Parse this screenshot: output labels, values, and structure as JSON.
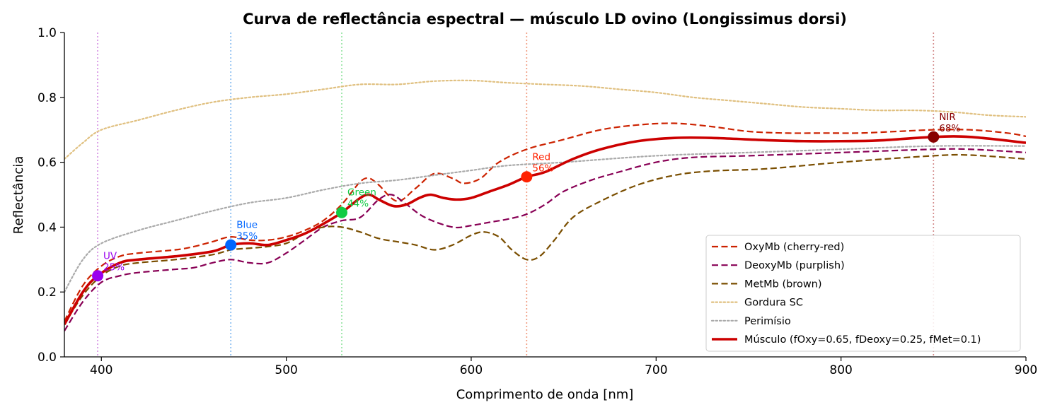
{
  "chart_data": {
    "type": "line",
    "title": "Curva de reflectância espectral — músculo LD ovino (Longissimus dorsi)",
    "xlabel": "Comprimento de onda [nm]",
    "ylabel": "Reflectância",
    "xlim": [
      380,
      900
    ],
    "ylim": [
      0.0,
      1.0
    ],
    "xticks": [
      400,
      500,
      600,
      700,
      800,
      900
    ],
    "xtick_labels": [
      "400",
      "500",
      "600",
      "700",
      "800",
      "900"
    ],
    "yticks": [
      0.0,
      0.2,
      0.4,
      0.6,
      0.8,
      1.0
    ],
    "ytick_labels": [
      "0.0",
      "0.2",
      "0.4",
      "0.6",
      "0.8",
      "1.0"
    ],
    "grid": false,
    "legend_position": "lower-right",
    "series": [
      {
        "name": "OxyMb (cherry-red)",
        "color": "#cc2200",
        "style": "dashed",
        "points": [
          [
            380,
            0.11
          ],
          [
            390,
            0.22
          ],
          [
            400,
            0.28
          ],
          [
            410,
            0.31
          ],
          [
            420,
            0.32
          ],
          [
            440,
            0.33
          ],
          [
            450,
            0.34
          ],
          [
            460,
            0.355
          ],
          [
            470,
            0.37
          ],
          [
            480,
            0.36
          ],
          [
            490,
            0.36
          ],
          [
            500,
            0.37
          ],
          [
            510,
            0.39
          ],
          [
            520,
            0.42
          ],
          [
            530,
            0.47
          ],
          [
            540,
            0.54
          ],
          [
            545,
            0.55
          ],
          [
            550,
            0.53
          ],
          [
            560,
            0.48
          ],
          [
            570,
            0.52
          ],
          [
            580,
            0.565
          ],
          [
            590,
            0.55
          ],
          [
            596,
            0.535
          ],
          [
            605,
            0.55
          ],
          [
            615,
            0.6
          ],
          [
            630,
            0.64
          ],
          [
            650,
            0.67
          ],
          [
            670,
            0.7
          ],
          [
            690,
            0.715
          ],
          [
            710,
            0.72
          ],
          [
            730,
            0.71
          ],
          [
            750,
            0.695
          ],
          [
            770,
            0.69
          ],
          [
            790,
            0.69
          ],
          [
            810,
            0.69
          ],
          [
            830,
            0.695
          ],
          [
            850,
            0.7
          ],
          [
            870,
            0.7
          ],
          [
            890,
            0.69
          ],
          [
            900,
            0.68
          ]
        ]
      },
      {
        "name": "DeoxyMb (purplish)",
        "color": "#880055",
        "style": "dashed",
        "points": [
          [
            380,
            0.08
          ],
          [
            390,
            0.17
          ],
          [
            400,
            0.23
          ],
          [
            410,
            0.25
          ],
          [
            420,
            0.26
          ],
          [
            440,
            0.27
          ],
          [
            450,
            0.275
          ],
          [
            460,
            0.29
          ],
          [
            470,
            0.3
          ],
          [
            480,
            0.29
          ],
          [
            490,
            0.29
          ],
          [
            500,
            0.32
          ],
          [
            510,
            0.36
          ],
          [
            520,
            0.4
          ],
          [
            530,
            0.42
          ],
          [
            540,
            0.43
          ],
          [
            550,
            0.485
          ],
          [
            557,
            0.5
          ],
          [
            565,
            0.47
          ],
          [
            575,
            0.43
          ],
          [
            590,
            0.4
          ],
          [
            600,
            0.405
          ],
          [
            610,
            0.415
          ],
          [
            620,
            0.425
          ],
          [
            630,
            0.44
          ],
          [
            640,
            0.47
          ],
          [
            650,
            0.51
          ],
          [
            665,
            0.545
          ],
          [
            680,
            0.57
          ],
          [
            700,
            0.6
          ],
          [
            720,
            0.615
          ],
          [
            750,
            0.62
          ],
          [
            800,
            0.63
          ],
          [
            850,
            0.64
          ],
          [
            870,
            0.64
          ],
          [
            900,
            0.63
          ]
        ]
      },
      {
        "name": "MetMb (brown)",
        "color": "#7a4e00",
        "style": "dashed",
        "points": [
          [
            380,
            0.1
          ],
          [
            390,
            0.19
          ],
          [
            400,
            0.25
          ],
          [
            410,
            0.28
          ],
          [
            420,
            0.29
          ],
          [
            440,
            0.3
          ],
          [
            460,
            0.315
          ],
          [
            470,
            0.33
          ],
          [
            480,
            0.335
          ],
          [
            490,
            0.34
          ],
          [
            500,
            0.35
          ],
          [
            510,
            0.38
          ],
          [
            520,
            0.4
          ],
          [
            530,
            0.4
          ],
          [
            540,
            0.385
          ],
          [
            550,
            0.365
          ],
          [
            560,
            0.355
          ],
          [
            570,
            0.345
          ],
          [
            580,
            0.33
          ],
          [
            590,
            0.345
          ],
          [
            600,
            0.375
          ],
          [
            607,
            0.385
          ],
          [
            615,
            0.37
          ],
          [
            622,
            0.33
          ],
          [
            630,
            0.3
          ],
          [
            637,
            0.31
          ],
          [
            645,
            0.36
          ],
          [
            655,
            0.43
          ],
          [
            670,
            0.48
          ],
          [
            690,
            0.53
          ],
          [
            710,
            0.56
          ],
          [
            730,
            0.573
          ],
          [
            760,
            0.58
          ],
          [
            800,
            0.6
          ],
          [
            850,
            0.62
          ],
          [
            870,
            0.622
          ],
          [
            900,
            0.61
          ]
        ]
      },
      {
        "name": "Gordura SC",
        "color": "#e0c080",
        "style": "dotted",
        "points": [
          [
            380,
            0.61
          ],
          [
            390,
            0.66
          ],
          [
            400,
            0.7
          ],
          [
            420,
            0.73
          ],
          [
            440,
            0.76
          ],
          [
            460,
            0.785
          ],
          [
            480,
            0.8
          ],
          [
            500,
            0.81
          ],
          [
            520,
            0.825
          ],
          [
            540,
            0.84
          ],
          [
            560,
            0.84
          ],
          [
            580,
            0.85
          ],
          [
            600,
            0.852
          ],
          [
            620,
            0.845
          ],
          [
            640,
            0.84
          ],
          [
            660,
            0.835
          ],
          [
            680,
            0.825
          ],
          [
            700,
            0.815
          ],
          [
            720,
            0.8
          ],
          [
            740,
            0.79
          ],
          [
            760,
            0.78
          ],
          [
            780,
            0.77
          ],
          [
            800,
            0.765
          ],
          [
            820,
            0.76
          ],
          [
            840,
            0.76
          ],
          [
            860,
            0.755
          ],
          [
            880,
            0.745
          ],
          [
            900,
            0.74
          ]
        ]
      },
      {
        "name": "Perimísio",
        "color": "#aaaaaa",
        "style": "dotted",
        "points": [
          [
            380,
            0.2
          ],
          [
            390,
            0.3
          ],
          [
            400,
            0.35
          ],
          [
            420,
            0.39
          ],
          [
            440,
            0.42
          ],
          [
            460,
            0.45
          ],
          [
            480,
            0.475
          ],
          [
            500,
            0.49
          ],
          [
            520,
            0.515
          ],
          [
            540,
            0.535
          ],
          [
            560,
            0.545
          ],
          [
            580,
            0.56
          ],
          [
            600,
            0.575
          ],
          [
            620,
            0.59
          ],
          [
            650,
            0.6
          ],
          [
            700,
            0.62
          ],
          [
            750,
            0.63
          ],
          [
            800,
            0.64
          ],
          [
            850,
            0.65
          ],
          [
            900,
            0.65
          ]
        ]
      },
      {
        "name": "Músculo (fOxy=0.65, fDeoxy=0.25, fMet=0.1)",
        "color": "#cc0000",
        "style": "solid",
        "points": [
          [
            380,
            0.1
          ],
          [
            390,
            0.2
          ],
          [
            398,
            0.25
          ],
          [
            410,
            0.29
          ],
          [
            420,
            0.3
          ],
          [
            440,
            0.31
          ],
          [
            460,
            0.325
          ],
          [
            470,
            0.345
          ],
          [
            480,
            0.35
          ],
          [
            490,
            0.345
          ],
          [
            500,
            0.36
          ],
          [
            510,
            0.38
          ],
          [
            520,
            0.41
          ],
          [
            530,
            0.445
          ],
          [
            540,
            0.49
          ],
          [
            545,
            0.5
          ],
          [
            550,
            0.485
          ],
          [
            558,
            0.465
          ],
          [
            565,
            0.47
          ],
          [
            572,
            0.49
          ],
          [
            578,
            0.5
          ],
          [
            585,
            0.49
          ],
          [
            592,
            0.485
          ],
          [
            600,
            0.49
          ],
          [
            610,
            0.51
          ],
          [
            620,
            0.53
          ],
          [
            630,
            0.555
          ],
          [
            640,
            0.57
          ],
          [
            655,
            0.61
          ],
          [
            670,
            0.64
          ],
          [
            690,
            0.665
          ],
          [
            710,
            0.675
          ],
          [
            730,
            0.675
          ],
          [
            760,
            0.668
          ],
          [
            780,
            0.665
          ],
          [
            800,
            0.665
          ],
          [
            820,
            0.667
          ],
          [
            850,
            0.678
          ],
          [
            870,
            0.678
          ],
          [
            900,
            0.66
          ]
        ]
      }
    ],
    "markers": [
      {
        "label": "UV",
        "pct": "25%",
        "x": 398,
        "y": 0.25,
        "color": "#9900ee"
      },
      {
        "label": "Blue",
        "pct": "35%",
        "x": 470,
        "y": 0.345,
        "color": "#0066ff"
      },
      {
        "label": "Green",
        "pct": "44%",
        "x": 530,
        "y": 0.445,
        "color": "#11cc44"
      },
      {
        "label": "Red",
        "pct": "56%",
        "x": 630,
        "y": 0.555,
        "color": "#ff2200"
      },
      {
        "label": "NIR",
        "pct": "68%",
        "x": 850,
        "y": 0.678,
        "color": "#880000"
      }
    ],
    "vlines": [
      {
        "x": 398,
        "color": "#cc77dd"
      },
      {
        "x": 470,
        "color": "#66aaee"
      },
      {
        "x": 530,
        "color": "#77dd88"
      },
      {
        "x": 630,
        "color": "#ee8866"
      },
      {
        "x": 850,
        "color": "#cc7777"
      }
    ]
  }
}
